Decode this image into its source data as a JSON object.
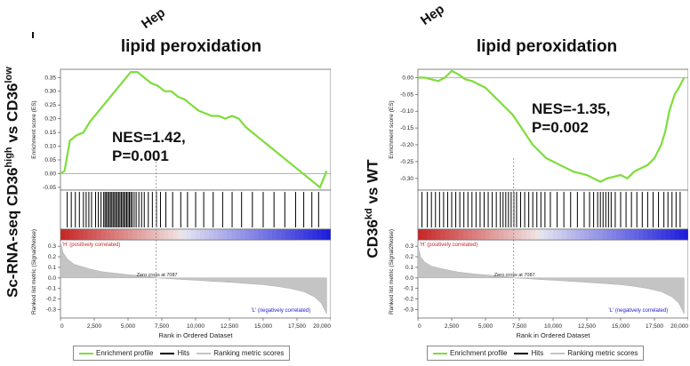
{
  "top_labels": [
    "Hep",
    "Hep"
  ],
  "chart_data": [
    {
      "type": "line",
      "title": "lipid peroxidation",
      "side_label": {
        "pre": "Sc-RNA-seq CD36",
        "sup1": "high",
        "mid": " vs CD36",
        "sup2": "low"
      },
      "annotation": [
        "NES=1.42,",
        "P=0.001"
      ],
      "es_ylabel": "Enrichment score (ES)",
      "es_ylim": [
        -0.06,
        0.38
      ],
      "es_yticks": [
        "0.35",
        "0.30",
        "0.25",
        "0.20",
        "0.15",
        "0.10",
        "0.05",
        "0.00",
        "-0.05"
      ],
      "es_ytick_values": [
        0.35,
        0.3,
        0.25,
        0.2,
        0.15,
        0.1,
        0.05,
        0.0,
        -0.05
      ],
      "es_x": [
        0,
        300,
        700,
        1200,
        1700,
        2200,
        2700,
        3200,
        3700,
        4200,
        4700,
        5200,
        5700,
        6200,
        6700,
        7200,
        7700,
        8200,
        8700,
        9200,
        9700,
        10200,
        10700,
        11200,
        11700,
        12200,
        12700,
        13200,
        13700,
        14200,
        14700,
        15200,
        15700,
        16200,
        16700,
        17200,
        17700,
        18200,
        18700,
        19200,
        19700
      ],
      "es_y": [
        0,
        0.01,
        0.12,
        0.14,
        0.15,
        0.19,
        0.22,
        0.25,
        0.28,
        0.31,
        0.34,
        0.37,
        0.37,
        0.35,
        0.33,
        0.32,
        0.3,
        0.3,
        0.28,
        0.27,
        0.25,
        0.23,
        0.22,
        0.21,
        0.21,
        0.2,
        0.21,
        0.2,
        0.17,
        0.15,
        0.13,
        0.11,
        0.09,
        0.07,
        0.05,
        0.03,
        0.01,
        -0.01,
        -0.03,
        -0.05,
        0.01
      ],
      "hits": [
        500,
        800,
        1100,
        1400,
        1700,
        1900,
        2100,
        2300,
        2600,
        2800,
        3000,
        3200,
        3300,
        3400,
        3500,
        3600,
        3700,
        3800,
        3900,
        4000,
        4100,
        4200,
        4300,
        4400,
        4500,
        4600,
        4700,
        4800,
        4900,
        5000,
        5100,
        5200,
        5300,
        5450,
        5600,
        5800,
        6000,
        6200,
        6500,
        6800,
        7100,
        7400,
        7800,
        8300,
        8900,
        9400,
        10000,
        10600,
        11300,
        12000,
        12700,
        13400,
        14200,
        15000,
        15800,
        16600,
        17400,
        18000,
        18600,
        19100
      ],
      "ranked_ylabel": "Ranked list metric (Signal2Noise)",
      "ranked_ylim": [
        -0.38,
        0.36
      ],
      "ranked_yticks": [
        "0.3",
        "0.2",
        "0.1",
        "0.0",
        "-0.1",
        "-0.2",
        "-0.3"
      ],
      "ranked_ytick_values": [
        0.3,
        0.2,
        0.1,
        0.0,
        -0.1,
        -0.2,
        -0.3
      ],
      "ranked_x": [
        0,
        200,
        500,
        1000,
        2000,
        3000,
        4000,
        5000,
        6000,
        7000,
        7087,
        8000,
        9000,
        10000,
        11000,
        12000,
        13000,
        14000,
        15000,
        16000,
        17000,
        18000,
        18800,
        19300,
        19700
      ],
      "ranked_y": [
        0.34,
        0.24,
        0.18,
        0.13,
        0.09,
        0.06,
        0.045,
        0.03,
        0.02,
        0.007,
        0,
        -0.007,
        -0.015,
        -0.022,
        -0.03,
        -0.038,
        -0.045,
        -0.055,
        -0.065,
        -0.08,
        -0.1,
        -0.13,
        -0.18,
        -0.24,
        -0.34
      ],
      "pos_label": "'H' (positively correlated)",
      "neg_label": "'L' (negatively correlated)",
      "zero_cross": "Zero cross at 7087",
      "zero_cross_value": 7087,
      "xlim": [
        0,
        20000
      ],
      "xticks": [
        "0",
        "2,500",
        "5,000",
        "7,500",
        "10,000",
        "12,500",
        "15,000",
        "17,500",
        "20,000"
      ],
      "xtick_values": [
        0,
        2500,
        5000,
        7500,
        10000,
        12500,
        15000,
        17500,
        20000
      ],
      "xlabel": "Rank in Ordered Dataset",
      "legend": [
        "Enrichment profile",
        "Hits",
        "Ranking metric scores"
      ]
    },
    {
      "type": "line",
      "title": "lipid peroxidation",
      "side_label": {
        "pre": "CD36",
        "sup1": "kd",
        "mid": " vs WT",
        "sup2": ""
      },
      "annotation": [
        "NES=-1.35,",
        "P=0.002"
      ],
      "es_ylabel": "Enrichment score (ES)",
      "es_ylim": [
        -0.335,
        0.025
      ],
      "es_yticks": [
        "0.00",
        "-0.05",
        "-0.10",
        "-0.15",
        "-0.20",
        "-0.25",
        "-0.30"
      ],
      "es_ytick_values": [
        0.0,
        -0.05,
        -0.1,
        -0.15,
        -0.2,
        -0.25,
        -0.3
      ],
      "es_x": [
        0,
        500,
        1000,
        1500,
        2000,
        2500,
        3000,
        3500,
        4000,
        4500,
        5000,
        5500,
        6000,
        6500,
        7000,
        7500,
        8000,
        8500,
        9000,
        9500,
        10000,
        10500,
        11000,
        11500,
        12000,
        12500,
        13000,
        13500,
        14000,
        14500,
        15000,
        15500,
        16000,
        16500,
        17000,
        17500,
        18000,
        18300,
        18600,
        19000,
        19300,
        19700
      ],
      "es_y": [
        0,
        0.0,
        -0.005,
        -0.01,
        0.0,
        0.02,
        0.01,
        -0.005,
        -0.01,
        -0.02,
        -0.03,
        -0.05,
        -0.07,
        -0.09,
        -0.11,
        -0.14,
        -0.17,
        -0.2,
        -0.22,
        -0.24,
        -0.25,
        -0.26,
        -0.27,
        -0.28,
        -0.285,
        -0.29,
        -0.3,
        -0.31,
        -0.3,
        -0.295,
        -0.29,
        -0.3,
        -0.28,
        -0.27,
        -0.26,
        -0.24,
        -0.2,
        -0.16,
        -0.1,
        -0.05,
        -0.03,
        0.0
      ],
      "hits": [
        300,
        700,
        1000,
        1300,
        1600,
        1900,
        2200,
        2500,
        2800,
        3100,
        3400,
        3700,
        4000,
        4300,
        4600,
        4900,
        5200,
        5500,
        5800,
        6100,
        6300,
        6500,
        6700,
        6900,
        7100,
        7300,
        7600,
        7900,
        8200,
        8500,
        8800,
        9100,
        9400,
        9800,
        10300,
        10800,
        11300,
        11800,
        12300,
        12700,
        13000,
        13300,
        13500,
        13700,
        13900,
        14100,
        14300,
        14600,
        15000,
        15400,
        15800,
        16200,
        16600,
        17000,
        17400,
        17800,
        18200,
        18500,
        18800,
        19100,
        19400
      ],
      "ranked_ylabel": "Ranked list metric (Signal2Noise)",
      "ranked_ylim": [
        -0.38,
        0.36
      ],
      "ranked_yticks": [
        "0.3",
        "0.2",
        "0.1",
        "0.0",
        "-0.1",
        "-0.2",
        "-0.3"
      ],
      "ranked_ytick_values": [
        0.3,
        0.2,
        0.1,
        0.0,
        -0.1,
        -0.2,
        -0.3
      ],
      "ranked_x": [
        0,
        200,
        500,
        1000,
        2000,
        3000,
        4000,
        5000,
        6000,
        7000,
        7087,
        8000,
        9000,
        10000,
        11000,
        12000,
        13000,
        14000,
        15000,
        16000,
        17000,
        18000,
        18800,
        19300,
        19700
      ],
      "ranked_y": [
        0.3,
        0.2,
        0.15,
        0.11,
        0.08,
        0.055,
        0.04,
        0.028,
        0.018,
        0.006,
        0,
        -0.007,
        -0.015,
        -0.022,
        -0.03,
        -0.038,
        -0.046,
        -0.055,
        -0.065,
        -0.08,
        -0.1,
        -0.13,
        -0.18,
        -0.24,
        -0.34
      ],
      "pos_label": "'H' (positively correlated)",
      "neg_label": "'L' (negatively correlated)",
      "zero_cross": "Zero cross at 7087",
      "zero_cross_value": 7087,
      "xlim": [
        0,
        20000
      ],
      "xticks": [
        "0",
        "2,500",
        "5,000",
        "7,500",
        "10,000",
        "12,500",
        "15,000",
        "17,500",
        "20,000"
      ],
      "xtick_values": [
        0,
        2500,
        5000,
        7500,
        10000,
        12500,
        15000,
        17500,
        20000
      ],
      "xlabel": "Rank in Ordered Dataset",
      "legend": [
        "Enrichment profile",
        "Hits",
        "Ranking metric scores"
      ]
    }
  ],
  "colors": {
    "enrichment": "#7ddd3a",
    "hits": "#000000",
    "ranked_fill": "#c4c4c4",
    "pos": "#cc2222",
    "neg": "#2222cc"
  }
}
